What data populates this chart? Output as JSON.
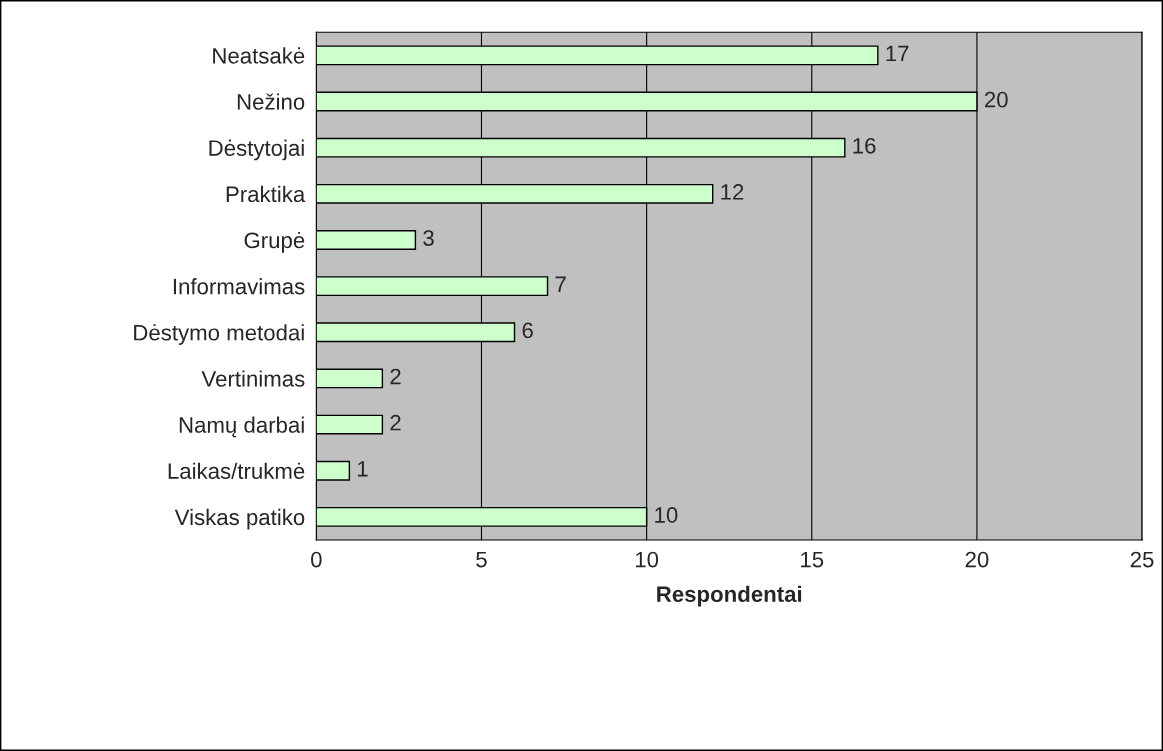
{
  "chart_data": {
    "type": "bar",
    "orientation": "horizontal",
    "xlabel": "Respondentai",
    "categories": [
      "Neatsakė",
      "Nežino",
      "Dėstytojai",
      "Praktika",
      "Grupė",
      "Informavimas",
      "Dėstymo metodai",
      "Vertinimas",
      "Namų darbai",
      "Laikas/trukmė",
      "Viskas patiko"
    ],
    "values": [
      17,
      20,
      16,
      12,
      3,
      7,
      6,
      2,
      2,
      1,
      10
    ],
    "color": "#ccffcc",
    "data_labels": true,
    "xlim": [
      0,
      25
    ],
    "xticks": [
      0,
      5,
      10,
      15,
      20,
      25
    ],
    "grid": "x",
    "legend": false
  }
}
